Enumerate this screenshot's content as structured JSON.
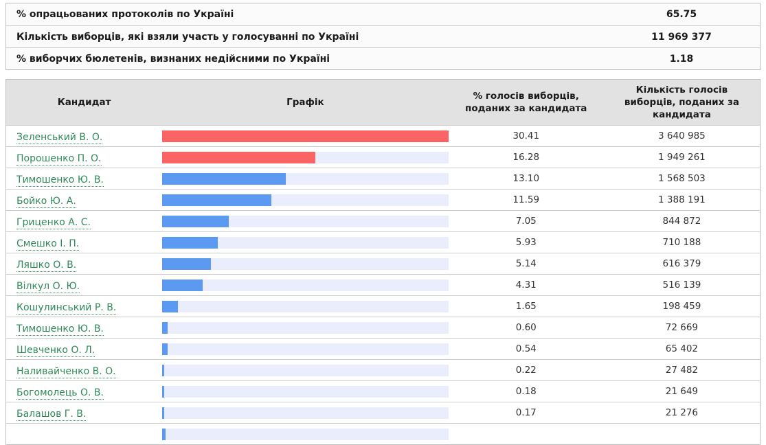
{
  "colors": {
    "bar_red": "#fb6464",
    "bar_blue": "#5b9af0",
    "bar_track": "#eaeefc",
    "link_green": "#2f8a57",
    "header_bg": "#e2e2e2",
    "border": "#bdbdbd"
  },
  "summary": {
    "rows": [
      {
        "label": "% опрацьованих протоколів по Україні",
        "value": "65.75"
      },
      {
        "label": "Кількість виборців, які взяли участь у голосуванні по Україні",
        "value": "11 969 377"
      },
      {
        "label": "% виборчих бюлетенів, визнаних недійсними по Україні",
        "value": "1.18"
      }
    ]
  },
  "results": {
    "headers": {
      "candidate": "Кандидат",
      "graph": "Графік",
      "percent": "% голосів виборців, поданих за кандидата",
      "votes": "Кількість голосів виборців, поданих за кандидата"
    },
    "rows": [
      {
        "name": "Зеленський В. О.",
        "percent": "30.41",
        "votes": "3 640 985",
        "bar_color": "red"
      },
      {
        "name": "Порошенко П. О.",
        "percent": "16.28",
        "votes": "1 949 261",
        "bar_color": "red"
      },
      {
        "name": "Тимошенко Ю. В.",
        "percent": "13.10",
        "votes": "1 568 503",
        "bar_color": "blue"
      },
      {
        "name": "Бойко Ю. А.",
        "percent": "11.59",
        "votes": "1 388 191",
        "bar_color": "blue"
      },
      {
        "name": "Гриценко А. С.",
        "percent": "7.05",
        "votes": "844 872",
        "bar_color": "blue"
      },
      {
        "name": "Смешко І. П.",
        "percent": "5.93",
        "votes": "710 188",
        "bar_color": "blue"
      },
      {
        "name": "Ляшко О. В.",
        "percent": "5.14",
        "votes": "616 379",
        "bar_color": "blue"
      },
      {
        "name": "Вілкул О. Ю.",
        "percent": "4.31",
        "votes": "516 139",
        "bar_color": "blue"
      },
      {
        "name": "Кошулинський Р. В.",
        "percent": "1.65",
        "votes": "198 459",
        "bar_color": "blue"
      },
      {
        "name": "Тимошенко Ю. В.",
        "percent": "0.60",
        "votes": "72 669",
        "bar_color": "blue"
      },
      {
        "name": "Шевченко О. Л.",
        "percent": "0.54",
        "votes": "65 402",
        "bar_color": "blue"
      },
      {
        "name": "Наливайченко В. О.",
        "percent": "0.22",
        "votes": "27 482",
        "bar_color": "blue"
      },
      {
        "name": "Богомолець О. В.",
        "percent": "0.18",
        "votes": "21 649",
        "bar_color": "blue"
      },
      {
        "name": "Балашов Г. В.",
        "percent": "0.17",
        "votes": "21 276",
        "bar_color": "blue"
      }
    ],
    "partial_row": {
      "bar_width_pct_of_track": 1.2,
      "bar_color": "blue"
    }
  },
  "chart_data": {
    "type": "bar",
    "orientation": "horizontal",
    "title": "",
    "xlabel": "% голосів виборців, поданих за кандидата",
    "ylabel": "Кандидат",
    "xlim": [
      0,
      30.41
    ],
    "legend": "none",
    "grid": false,
    "categories": [
      "Зеленський В. О.",
      "Порошенко П. О.",
      "Тимошенко Ю. В.",
      "Бойко Ю. А.",
      "Гриценко А. С.",
      "Смешко І. П.",
      "Ляшко О. В.",
      "Вілкул О. Ю.",
      "Кошулинський Р. В.",
      "Тимошенко Ю. В.",
      "Шевченко О. Л.",
      "Наливайченко В. О.",
      "Богомолець О. В.",
      "Балашов Г. В."
    ],
    "series": [
      {
        "name": "% голосів виборців, поданих за кандидата",
        "values": [
          30.41,
          16.28,
          13.1,
          11.59,
          7.05,
          5.93,
          5.14,
          4.31,
          1.65,
          0.6,
          0.54,
          0.22,
          0.18,
          0.17
        ]
      },
      {
        "name": "Кількість голосів виборців, поданих за кандидата",
        "values": [
          3640985,
          1949261,
          1568503,
          1388191,
          844872,
          710188,
          616379,
          516139,
          198459,
          72669,
          65402,
          27482,
          21649,
          21276
        ]
      }
    ],
    "bar_colors": [
      "#fb6464",
      "#fb6464",
      "#5b9af0",
      "#5b9af0",
      "#5b9af0",
      "#5b9af0",
      "#5b9af0",
      "#5b9af0",
      "#5b9af0",
      "#5b9af0",
      "#5b9af0",
      "#5b9af0",
      "#5b9af0",
      "#5b9af0"
    ],
    "context_values": {
      "protocols_processed_pct": 65.75,
      "voters_participated": 11969377,
      "invalid_ballots_pct": 1.18
    }
  }
}
